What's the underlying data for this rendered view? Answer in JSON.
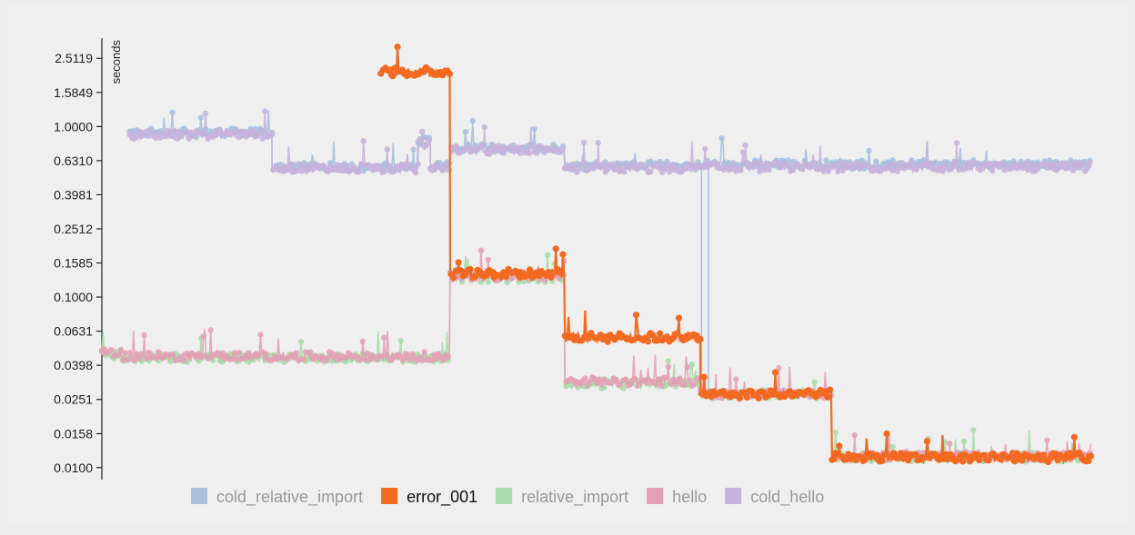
{
  "chart_data": {
    "type": "line",
    "ylabel": "seconds",
    "yscale": "log",
    "ylim": [
      0.0085,
      3.3
    ],
    "xlim": [
      0,
      1000
    ],
    "grid": false,
    "legend_position": "bottom",
    "yticks": [
      {
        "value": 2.5119,
        "label": "2.5119"
      },
      {
        "value": 1.5849,
        "label": "1.5849"
      },
      {
        "value": 1.0,
        "label": "1.0000"
      },
      {
        "value": 0.631,
        "label": "0.6310"
      },
      {
        "value": 0.3981,
        "label": "0.3981"
      },
      {
        "value": 0.2512,
        "label": "0.2512"
      },
      {
        "value": 0.1585,
        "label": "0.1585"
      },
      {
        "value": 0.1,
        "label": "0.1000"
      },
      {
        "value": 0.0631,
        "label": "0.0631"
      },
      {
        "value": 0.0398,
        "label": "0.0398"
      },
      {
        "value": 0.0251,
        "label": "0.0251"
      },
      {
        "value": 0.0158,
        "label": "0.0158"
      },
      {
        "value": 0.01,
        "label": "0.0100"
      }
    ],
    "series": [
      {
        "name": "cold_relative_import",
        "color": "#a9bfdc",
        "segments": [
          {
            "x": [
              28,
              172
            ],
            "y": 0.92
          },
          {
            "x": [
              172,
              320
            ],
            "y": 0.58
          },
          {
            "x": [
              320,
              332
            ],
            "y": 0.83
          },
          {
            "x": [
              332,
              352
            ],
            "y": 0.59
          },
          {
            "x": [
              352,
              468
            ],
            "y": 0.75
          },
          {
            "x": [
              468,
              612
            ],
            "y": 0.59
          },
          {
            "x": [
              612,
              1000
            ],
            "y": 0.6
          }
        ],
        "dips": [
          {
            "x": 606,
            "y": 0.027
          },
          {
            "x": 613,
            "y": 0.027
          }
        ]
      },
      {
        "name": "error_001",
        "color": "#f26a21",
        "segments": [
          {
            "x": [
              282,
              352
            ],
            "y": 2.1
          },
          {
            "x": [
              352,
              468
            ],
            "y": 0.138
          },
          {
            "x": [
              468,
              605
            ],
            "y": 0.058
          },
          {
            "x": [
              605,
              738
            ],
            "y": 0.027
          },
          {
            "x": [
              738,
              1000
            ],
            "y": 0.0115
          }
        ]
      },
      {
        "name": "relative_import",
        "color": "#a8dcaa",
        "segments": [
          {
            "x": [
              0,
              20
            ],
            "y": 0.046
          },
          {
            "x": [
              20,
              352
            ],
            "y": 0.044
          },
          {
            "x": [
              352,
              468
            ],
            "y": 0.13
          },
          {
            "x": [
              468,
              605
            ],
            "y": 0.031
          },
          {
            "x": [
              605,
              738
            ],
            "y": 0.027
          },
          {
            "x": [
              738,
              1000
            ],
            "y": 0.0115
          }
        ]
      },
      {
        "name": "hello",
        "color": "#e3a1b6",
        "segments": [
          {
            "x": [
              0,
              20
            ],
            "y": 0.047
          },
          {
            "x": [
              20,
              352
            ],
            "y": 0.045
          },
          {
            "x": [
              352,
              468
            ],
            "y": 0.133
          },
          {
            "x": [
              468,
              605
            ],
            "y": 0.032
          },
          {
            "x": [
              605,
              738
            ],
            "y": 0.027
          },
          {
            "x": [
              738,
              1000
            ],
            "y": 0.0117
          }
        ]
      },
      {
        "name": "cold_hello",
        "color": "#c6b3dc",
        "segments": [
          {
            "x": [
              28,
              172
            ],
            "y": 0.9
          },
          {
            "x": [
              172,
              320
            ],
            "y": 0.57
          },
          {
            "x": [
              320,
              332
            ],
            "y": 0.8
          },
          {
            "x": [
              332,
              352
            ],
            "y": 0.58
          },
          {
            "x": [
              352,
              468
            ],
            "y": 0.73
          },
          {
            "x": [
              468,
              612
            ],
            "y": 0.57
          },
          {
            "x": [
              612,
              1000
            ],
            "y": 0.58
          }
        ]
      }
    ]
  }
}
